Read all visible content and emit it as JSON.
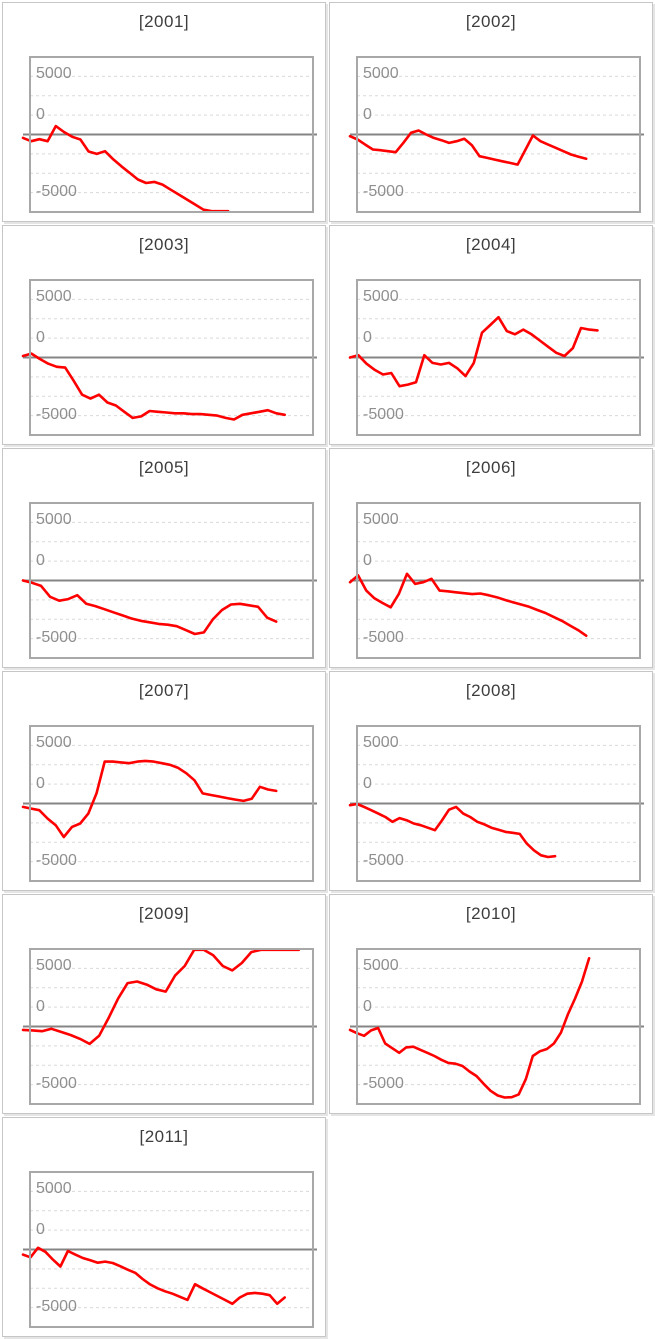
{
  "page": {
    "background": "#ffffff",
    "description_colors": {
      "line": "#fe0000",
      "zero_line": "#858585",
      "frame": "#a8a8a8",
      "gridline": "#d9d9d9",
      "title_text": "#3d3d3d",
      "tick_text": "#8f8f8f",
      "panel_border": "#c6c6c6"
    }
  },
  "chart_data": [
    {
      "type": "line",
      "title": "[2001]",
      "y_ticks": [
        "5000",
        "0",
        "-5000"
      ],
      "ylim": [
        -5000,
        5000
      ],
      "grid_step": 1250,
      "legend": "none",
      "series_color": "#fe0000",
      "span": 0.7,
      "values": [
        -220,
        -430,
        -300,
        -430,
        540,
        160,
        -150,
        -320,
        -1100,
        -1250,
        -1080,
        -1600,
        -2050,
        -2480,
        -2900,
        -3130,
        -3060,
        -3230,
        -3560,
        -3880,
        -4200,
        -4520,
        -4850,
        -5100,
        -5200,
        -5200
      ]
    },
    {
      "type": "line",
      "title": "[2002]",
      "y_ticks": [
        "5000",
        "0",
        "-5000"
      ],
      "ylim": [
        -5000,
        5000
      ],
      "grid_step": 1250,
      "legend": "none",
      "series_color": "#fe0000",
      "span": 0.81,
      "values": [
        -110,
        -320,
        -650,
        -970,
        -1010,
        -1080,
        -1140,
        -540,
        110,
        260,
        0,
        -220,
        -370,
        -540,
        -430,
        -280,
        -700,
        -1400,
        -1510,
        -1620,
        -1730,
        -1830,
        -1940,
        -1000,
        -65,
        -430,
        -650,
        -860,
        -1080,
        -1290,
        -1440,
        -1570
      ]
    },
    {
      "type": "line",
      "title": "[2003]",
      "y_ticks": [
        "5000",
        "0",
        "-5000"
      ],
      "ylim": [
        -5000,
        5000
      ],
      "grid_step": 1250,
      "legend": "none",
      "series_color": "#fe0000",
      "span": 0.9,
      "values": [
        100,
        250,
        -100,
        -400,
        -600,
        -650,
        -1500,
        -2400,
        -2650,
        -2400,
        -2900,
        -3100,
        -3500,
        -3900,
        -3800,
        -3450,
        -3500,
        -3550,
        -3600,
        -3600,
        -3650,
        -3650,
        -3700,
        -3750,
        -3900,
        -4000,
        -3700,
        -3600,
        -3500,
        -3400,
        -3600,
        -3700
      ]
    },
    {
      "type": "line",
      "title": "[2004]",
      "y_ticks": [
        "5000",
        "0",
        "-5000"
      ],
      "ylim": [
        -5000,
        5000
      ],
      "grid_step": 1250,
      "legend": "none",
      "series_color": "#fe0000",
      "span": 0.85,
      "values": [
        0,
        150,
        -400,
        -800,
        -1100,
        -1000,
        -1850,
        -1750,
        -1600,
        150,
        -350,
        -450,
        -350,
        -700,
        -1200,
        -350,
        1600,
        2100,
        2600,
        1700,
        1500,
        1800,
        1500,
        1100,
        700,
        300,
        100,
        600,
        1900,
        1800,
        1750
      ]
    },
    {
      "type": "line",
      "title": "[2005]",
      "y_ticks": [
        "5000",
        "0",
        "-5000"
      ],
      "ylim": [
        -5000,
        5000
      ],
      "grid_step": 1250,
      "legend": "none",
      "series_color": "#fe0000",
      "span": 0.87,
      "values": [
        0,
        -150,
        -350,
        -1050,
        -1300,
        -1200,
        -950,
        -1500,
        -1650,
        -1850,
        -2050,
        -2250,
        -2450,
        -2600,
        -2700,
        -2800,
        -2850,
        -2950,
        -3200,
        -3450,
        -3350,
        -2500,
        -1900,
        -1550,
        -1500,
        -1600,
        -1700,
        -2400,
        -2650
      ]
    },
    {
      "type": "line",
      "title": "[2006]",
      "y_ticks": [
        "5000",
        "0",
        "-5000"
      ],
      "ylim": [
        -5000,
        5000
      ],
      "grid_step": 1250,
      "legend": "none",
      "series_color": "#fe0000",
      "span": 0.81,
      "values": [
        -110,
        330,
        -650,
        -1150,
        -1450,
        -1730,
        -860,
        430,
        -220,
        -110,
        110,
        -650,
        -700,
        -760,
        -820,
        -880,
        -840,
        -950,
        -1080,
        -1250,
        -1400,
        -1550,
        -1700,
        -1900,
        -2100,
        -2350,
        -2600,
        -2900,
        -3200,
        -3560
      ]
    },
    {
      "type": "line",
      "title": "[2007]",
      "y_ticks": [
        "5000",
        "0",
        "-5000"
      ],
      "ylim": [
        -5000,
        5000
      ],
      "grid_step": 1250,
      "legend": "none",
      "series_color": "#fe0000",
      "span": 0.87,
      "values": [
        -220,
        -330,
        -430,
        -970,
        -1400,
        -2160,
        -1510,
        -1290,
        -650,
        650,
        2700,
        2700,
        2650,
        2600,
        2700,
        2750,
        2700,
        2600,
        2500,
        2300,
        1950,
        1500,
        650,
        550,
        450,
        350,
        250,
        170,
        300,
        1080,
        900,
        810
      ]
    },
    {
      "type": "line",
      "title": "[2008]",
      "y_ticks": [
        "5000",
        "0",
        "-5000"
      ],
      "ylim": [
        -5000,
        5000
      ],
      "grid_step": 1250,
      "legend": "none",
      "series_color": "#fe0000",
      "span": 0.7,
      "values": [
        -110,
        -30,
        -220,
        -430,
        -650,
        -870,
        -1180,
        -940,
        -1080,
        -1290,
        -1400,
        -1560,
        -1720,
        -1100,
        -400,
        -220,
        -650,
        -870,
        -1180,
        -1350,
        -1560,
        -1700,
        -1830,
        -1890,
        -1960,
        -2590,
        -3020,
        -3340,
        -3450,
        -3400
      ]
    },
    {
      "type": "line",
      "title": "[2009]",
      "y_ticks": [
        "5000",
        "0",
        "-5000"
      ],
      "ylim": [
        -5000,
        5000
      ],
      "grid_step": 1250,
      "legend": "none",
      "series_color": "#fe0000",
      "span": 0.95,
      "values": [
        -220,
        -250,
        -300,
        -150,
        -350,
        -550,
        -800,
        -1120,
        -600,
        550,
        1800,
        2800,
        2900,
        2700,
        2400,
        2250,
        3300,
        3900,
        5300,
        5400,
        4600,
        3900,
        3620,
        4100,
        4800,
        5400,
        5500,
        5500,
        5500,
        5500
      ]
    },
    {
      "type": "line",
      "title": "[2010]",
      "y_ticks": [
        "5000",
        "0",
        "-5000"
      ],
      "ylim": [
        -5000,
        5000
      ],
      "grid_step": 1250,
      "legend": "none",
      "series_color": "#fe0000",
      "span": 0.82,
      "values": [
        -220,
        -430,
        -600,
        -250,
        -100,
        -1100,
        -1400,
        -1700,
        -1350,
        -1300,
        -1500,
        -1700,
        -1900,
        -2150,
        -2350,
        -2400,
        -2550,
        -2900,
        -3200,
        -3700,
        -4150,
        -4450,
        -4580,
        -4560,
        -4380,
        -3400,
        -1900,
        -1600,
        -1450,
        -1100,
        -400,
        800,
        1800,
        2900,
        4400
      ]
    },
    {
      "type": "line",
      "title": "[2011]",
      "y_ticks": [
        "5000",
        "0",
        "-5000"
      ],
      "ylim": [
        -5000,
        5000
      ],
      "grid_step": 1250,
      "legend": "none",
      "series_color": "#fe0000",
      "span": 0.9,
      "values": [
        -330,
        -500,
        110,
        -150,
        -650,
        -1100,
        -100,
        -330,
        -550,
        -700,
        -850,
        -780,
        -870,
        -1080,
        -1300,
        -1500,
        -1900,
        -2250,
        -2500,
        -2700,
        -2850,
        -3050,
        -3250,
        -2240,
        -2500,
        -2750,
        -3000,
        -3250,
        -3500,
        -3100,
        -2850,
        -2800,
        -2850,
        -2950,
        -3500,
        -3100
      ]
    }
  ]
}
